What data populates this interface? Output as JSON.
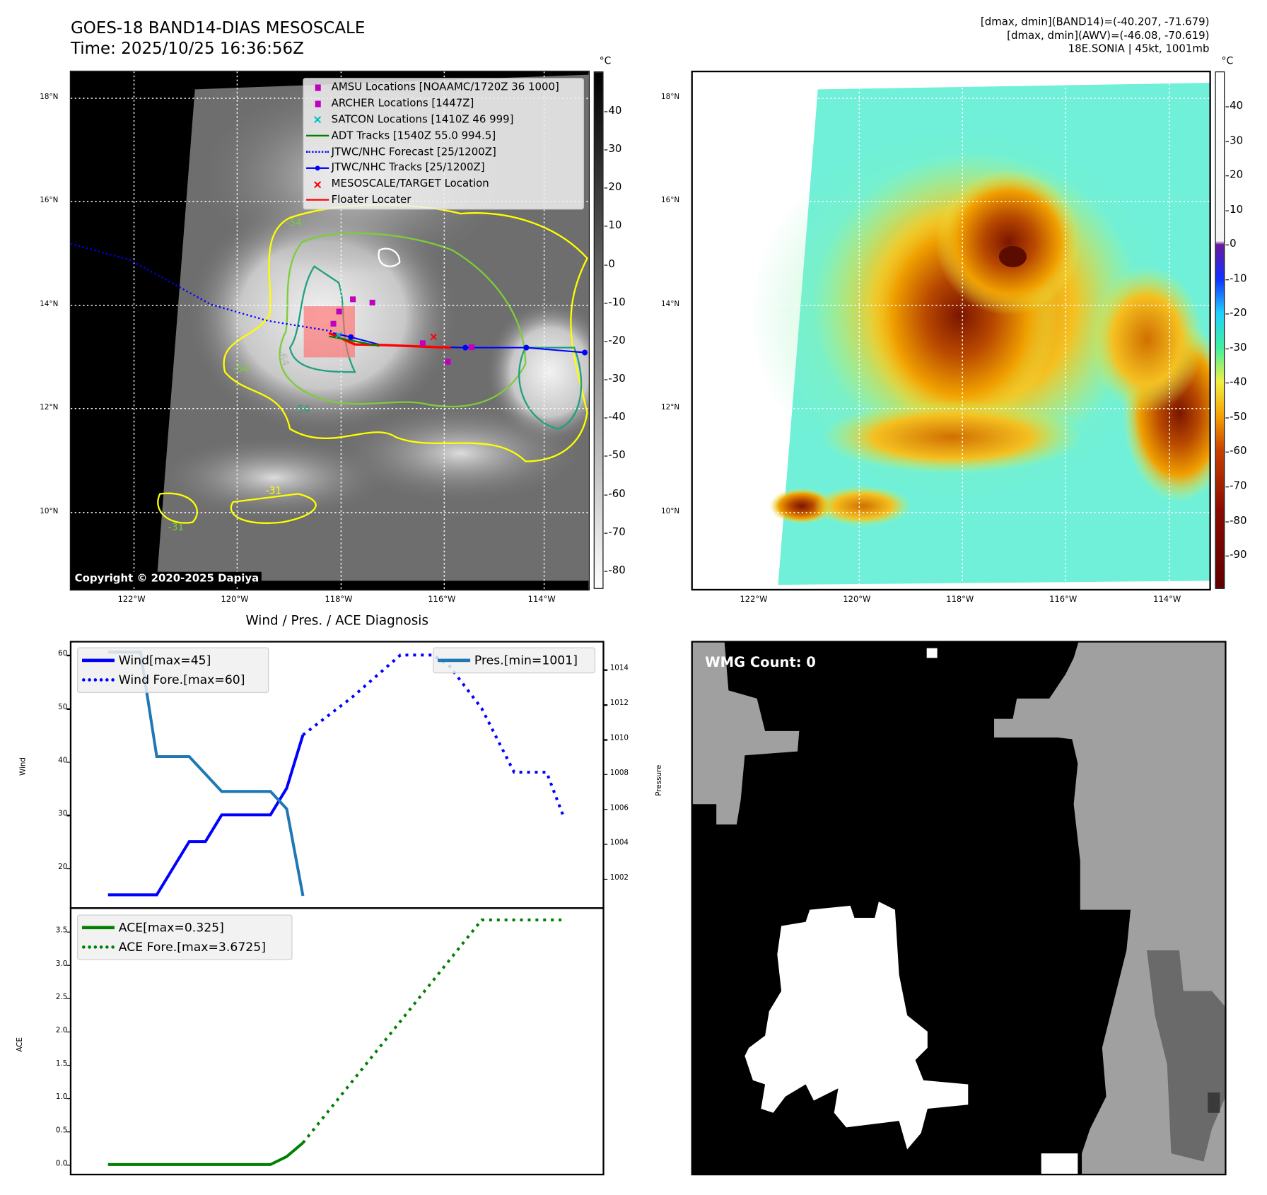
{
  "header": {
    "title_line1": "GOES-18 BAND14-DIAS MESOSCALE",
    "title_line2": "Time: 2025/10/25 16:36:56Z",
    "info_line1": "[dmax, dmin](BAND14)=(-40.207, -71.679)",
    "info_line2": "[dmax, dmin](AWV)=(-46.08, -70.619)",
    "info_line3": "18E.SONIA | 45kt, 1001mb"
  },
  "map": {
    "lat_ticks": [
      "18°N",
      "16°N",
      "14°N",
      "12°N",
      "10°N"
    ],
    "lon_ticks": [
      "122°W",
      "120°W",
      "118°W",
      "116°W",
      "114°W"
    ],
    "copyright": "Copyright © 2020-2025 Dapiya",
    "contour_labels": [
      "-64",
      "-54",
      "-54",
      "-31",
      "-31",
      "-54"
    ],
    "legend": [
      {
        "label": "AMSU Locations [NOAAMC/1720Z 36 1000]",
        "symbol": "square",
        "color": "#c000c0"
      },
      {
        "label": "ARCHER Locations [1447Z]",
        "symbol": "square",
        "color": "#c000c0"
      },
      {
        "label": "SATCON Locations [1410Z 46 999]",
        "symbol": "x",
        "color": "#00c0c0"
      },
      {
        "label": "ADT Tracks [1540Z 55.0 994.5]",
        "symbol": "line",
        "color": "#008000"
      },
      {
        "label": "JTWC/NHC Forecast [25/1200Z]",
        "symbol": "dotted",
        "color": "#0000ff"
      },
      {
        "label": "JTWC/NHC Tracks [25/1200Z]",
        "symbol": "line-dot",
        "color": "#0000ff"
      },
      {
        "label": "MESOSCALE/TARGET Location",
        "symbol": "x",
        "color": "#ff0000"
      },
      {
        "label": "Floater Locater",
        "symbol": "line",
        "color": "#ff0000"
      }
    ]
  },
  "colorbar_left": {
    "unit": "°C",
    "ticks": [
      40,
      30,
      20,
      10,
      0,
      -10,
      -20,
      -30,
      -40,
      -50,
      -60,
      -70,
      -80
    ],
    "range": [
      50.4,
      -84.7
    ]
  },
  "colorbar_right": {
    "unit": "°C",
    "ticks": [
      40,
      30,
      20,
      10,
      0,
      -10,
      -20,
      -30,
      -40,
      -50,
      -60,
      -70,
      -80,
      -90
    ],
    "range": [
      50.1,
      -99.6
    ]
  },
  "wmg": {
    "label": "WMG Count: 0"
  },
  "chart_data": [
    {
      "type": "line",
      "title": "Wind / Pres. / ACE Diagnosis",
      "ylabel": "Wind",
      "ylabel_right": "Pressure",
      "ylim": [
        12.5,
        62.5
      ],
      "ylim_right": [
        1000.3,
        1015.6
      ],
      "yticks": [
        20,
        30,
        40,
        50,
        60
      ],
      "yticks_right": [
        1002,
        1004,
        1006,
        1008,
        1010,
        1012,
        1014
      ],
      "xlim": [
        -2.3,
        30.5
      ],
      "series": [
        {
          "name": "Wind[max=45]",
          "color": "#0000ff",
          "style": "solid",
          "x": [
            0,
            3,
            5,
            6,
            7,
            10,
            11,
            12
          ],
          "values": [
            15,
            15,
            25,
            25,
            30,
            30,
            35,
            45
          ]
        },
        {
          "name": "Wind Fore.[max=60]",
          "color": "#0000ff",
          "style": "dotted",
          "x": [
            12,
            15,
            18,
            20,
            21,
            23,
            25,
            27,
            28
          ],
          "values": [
            45,
            52,
            60,
            60,
            58,
            50,
            38,
            38,
            30
          ]
        },
        {
          "name": "Pres.[min=1001]",
          "color": "#1f77b4",
          "style": "solid",
          "axis": "right",
          "x": [
            0,
            2,
            3,
            5,
            7,
            10,
            11,
            12
          ],
          "values": [
            1015,
            1015,
            1009,
            1009,
            1007,
            1007,
            1006,
            1001
          ]
        }
      ]
    },
    {
      "type": "line",
      "ylabel": "ACE",
      "ylim": [
        -0.15,
        3.85
      ],
      "yticks": [
        "0.0",
        "0.5",
        "1.0",
        "1.5",
        "2.0",
        "2.5",
        "3.0",
        "3.5"
      ],
      "xlim": [
        -2.3,
        30.5
      ],
      "series": [
        {
          "name": "ACE[max=0.325]",
          "color": "#008000",
          "style": "solid",
          "x": [
            0,
            10,
            11,
            12
          ],
          "values": [
            0,
            0,
            0.12,
            0.325
          ]
        },
        {
          "name": "ACE Fore.[max=3.6725]",
          "color": "#008000",
          "style": "dotted",
          "x": [
            12,
            23,
            28
          ],
          "values": [
            0.325,
            3.6725,
            3.6725
          ]
        }
      ]
    }
  ]
}
